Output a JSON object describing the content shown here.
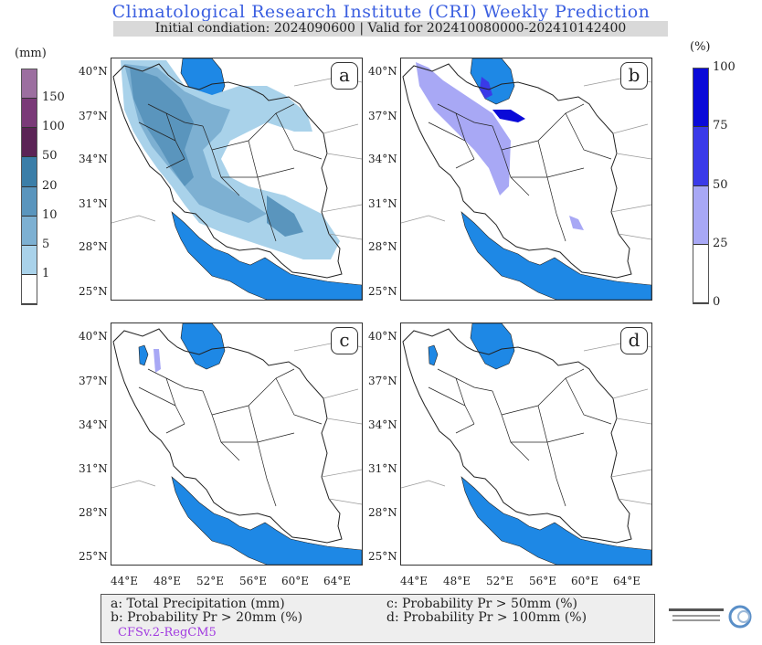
{
  "title": "Climatological Research Institute (CRI) Weekly Prediction",
  "subtitle": "Initial condiation: 2024090600 | Valid for 202410080000-202410142400",
  "left_colorbar": {
    "unit": "(mm)",
    "labels": [
      "150",
      "100",
      "50",
      "20",
      "10",
      "5",
      "1"
    ],
    "colors": [
      "#9c6fa0",
      "#7a3a78",
      "#5b2456",
      "#3b7ea8",
      "#5a95bd",
      "#7db0d2",
      "#a9d2ea",
      "#ffffff"
    ]
  },
  "right_colorbar": {
    "unit": "(%)",
    "labels": [
      "100",
      "75",
      "50",
      "25",
      "0"
    ],
    "colors": [
      "#0a0ad8",
      "#3a3ae8",
      "#a8a8f5",
      "#ffffff"
    ]
  },
  "panels": [
    {
      "label": "a"
    },
    {
      "label": "b"
    },
    {
      "label": "c"
    },
    {
      "label": "d"
    }
  ],
  "lat_ticks": [
    "40°N",
    "37°N",
    "34°N",
    "31°N",
    "28°N",
    "25°N"
  ],
  "lon_ticks": [
    "44°E",
    "48°E",
    "52°E",
    "56°E",
    "60°E",
    "64°E"
  ],
  "legend": {
    "a": "a: Total Precipitation (mm)",
    "b": "b: Probability Pr > 20mm (%)",
    "c": "c: Probability Pr > 50mm (%)",
    "d": "d: Probability Pr > 100mm (%)",
    "model": "CFSv.2-RegCM5"
  },
  "colors": {
    "sea": "#1e88e5",
    "title": "#3b5fe0"
  }
}
